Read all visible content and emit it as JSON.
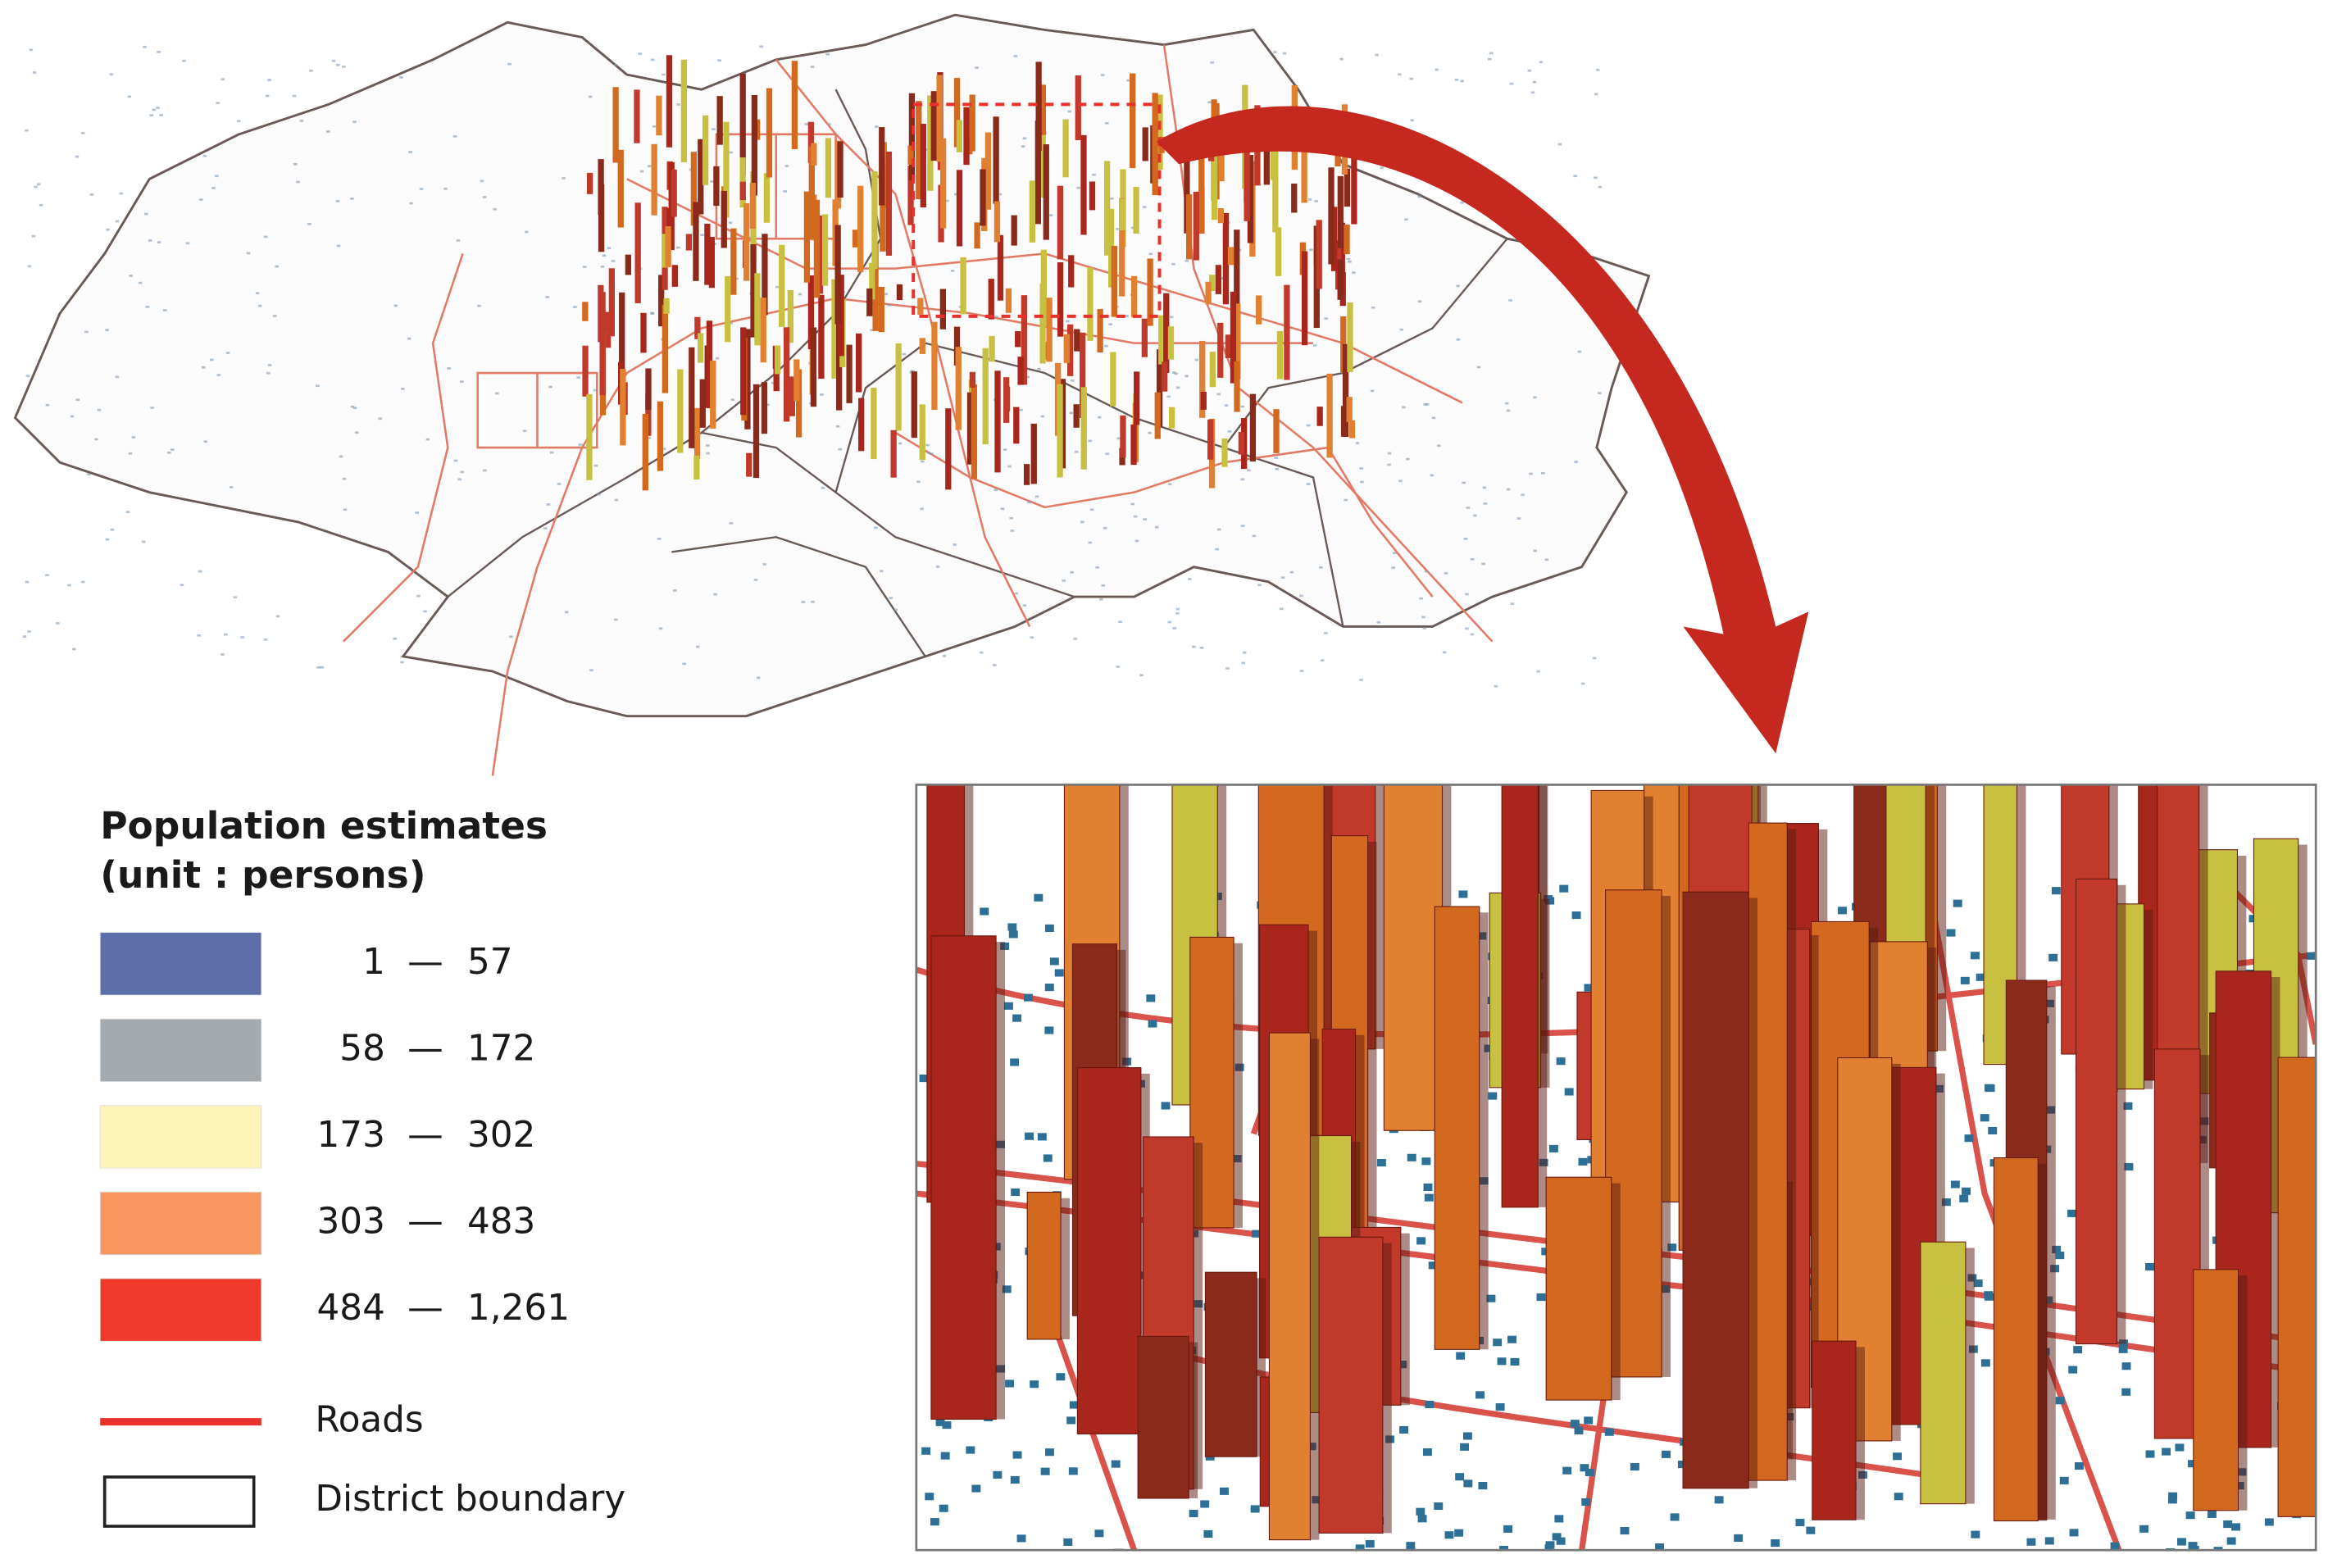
{
  "legend": {
    "title": "Population estimates",
    "unit": "(unit : persons)",
    "separator": "—",
    "classes": [
      {
        "from": "1",
        "to": "57",
        "color": "#5b6ea8"
      },
      {
        "from": "58",
        "to": "172",
        "color": "#a4aaae"
      },
      {
        "from": "173",
        "to": "302",
        "color": "#fdf5b8"
      },
      {
        "from": "303",
        "to": "483",
        "color": "#f99660"
      },
      {
        "from": "484",
        "to": "1,261",
        "color": "#ee3a2a"
      }
    ],
    "roads": "Roads",
    "boundary": "District boundary"
  }
}
